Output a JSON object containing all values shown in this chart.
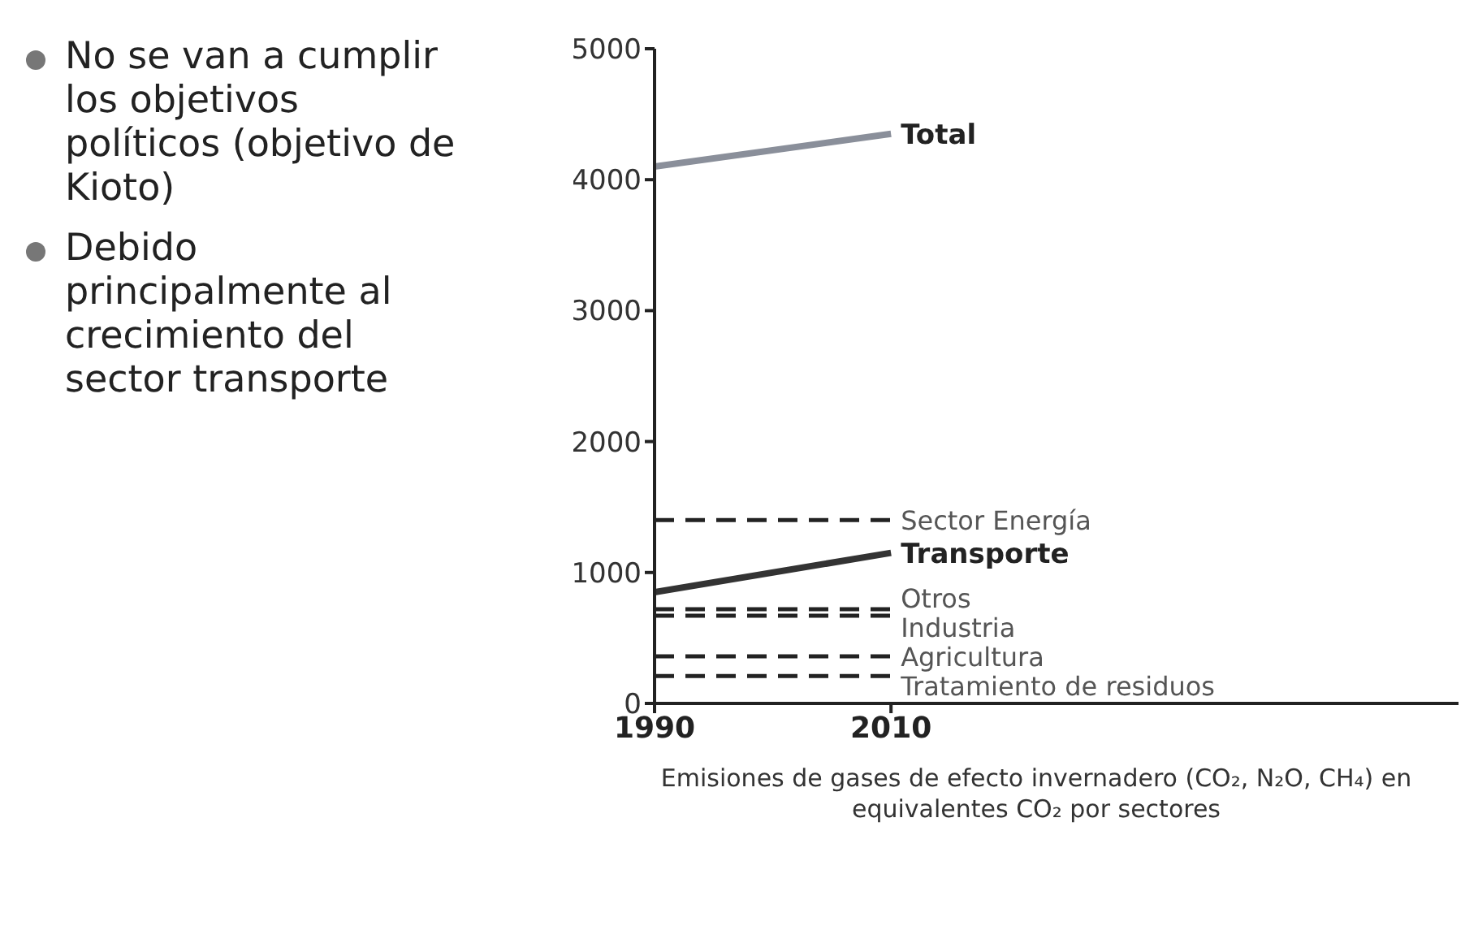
{
  "chart_data": {
    "type": "line",
    "xlabel": "Emisiones de gases de efecto invernadero (CO₂, N₂O, CH₄) en equivalentes CO₂ por sectores",
    "annotations": [
      "No se van a cumplir los objetivos políticos (objetivo de Kioto)",
      "Debido principalmente al crecimiento del sector transporte"
    ],
    "x": [
      1990,
      2010
    ],
    "xlim": [
      1990,
      2058
    ],
    "xticks": [
      1990,
      2010
    ],
    "ylim": [
      0,
      5000
    ],
    "yticks": [
      0,
      1000,
      2000,
      3000,
      4000,
      5000
    ],
    "grid": false,
    "legend": false,
    "marker": "none",
    "series": [
      {
        "name": "Total",
        "color": "#8a8f9a",
        "values": [
          4100,
          4350
        ],
        "line_style": "solid"
      },
      {
        "name": "Sector Energía",
        "color": "#222222",
        "values": [
          1400,
          1400
        ],
        "line_style": "dashed"
      },
      {
        "name": "Transporte",
        "color": "#333333",
        "values": [
          850,
          1150
        ],
        "line_style": "solid"
      },
      {
        "name": "Otros",
        "color": "#222222",
        "values": [
          720,
          720
        ],
        "line_style": "dashed"
      },
      {
        "name": "Industria",
        "color": "#222222",
        "values": [
          670,
          670
        ],
        "line_style": "dashed"
      },
      {
        "name": "Agricultura",
        "color": "#222222",
        "values": [
          360,
          360
        ],
        "line_style": "dashed"
      },
      {
        "name": "Tratamiento de residuos",
        "color": "#222222",
        "values": [
          210,
          210
        ],
        "line_style": "dashed"
      }
    ]
  }
}
